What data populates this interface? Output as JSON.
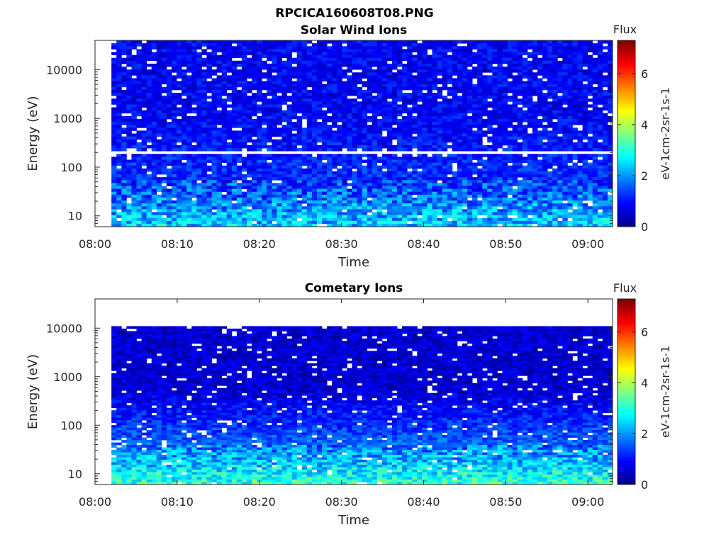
{
  "figure": {
    "title": "RPCICA160608T08.PNG"
  },
  "colors": {
    "colormap": [
      "#00008f",
      "#0000ff",
      "#0080ff",
      "#00ffff",
      "#80ff80",
      "#ffff00",
      "#ff8000",
      "#ff0000",
      "#800000"
    ],
    "axis": "#262626",
    "missing": "#ffffff"
  },
  "chart_data": [
    {
      "type": "heatmap",
      "title": "Solar Wind Ions",
      "xlabel": "Time",
      "ylabel": "Energy (eV)",
      "x_ticks": [
        "08:00",
        "08:10",
        "08:20",
        "08:30",
        "08:40",
        "08:50",
        "09:00"
      ],
      "x_range": [
        "08:00",
        "09:03"
      ],
      "data_x_range": [
        "08:02",
        "09:03"
      ],
      "y_scale": "log",
      "y_ticks": [
        "10",
        "100",
        "1000",
        "10000"
      ],
      "y_tick_values": [
        10,
        100,
        1000,
        10000
      ],
      "y_range": [
        6,
        40000
      ],
      "data_y_range": [
        6,
        40000
      ],
      "colorbar": {
        "title": "Flux",
        "label": "eV-1cm-2sr-1s-1",
        "ticks": [
          "0",
          "2",
          "4",
          "6"
        ],
        "range": [
          0,
          7.3
        ]
      },
      "flux_profile": {
        "low_energy": 2.3,
        "mid_energy": 1.2,
        "high_energy": 0.8
      },
      "gap_energy_eV": 200,
      "grid": false,
      "legend": "none"
    },
    {
      "type": "heatmap",
      "title": "Cometary Ions",
      "xlabel": "Time",
      "ylabel": "Energy (eV)",
      "x_ticks": [
        "08:00",
        "08:10",
        "08:20",
        "08:30",
        "08:40",
        "08:50",
        "09:00"
      ],
      "x_range": [
        "08:00",
        "09:03"
      ],
      "data_x_range": [
        "08:02",
        "09:03"
      ],
      "y_scale": "log",
      "y_ticks": [
        "10",
        "100",
        "1000",
        "10000"
      ],
      "y_tick_values": [
        10,
        100,
        1000,
        10000
      ],
      "y_range": [
        6,
        40000
      ],
      "data_y_range": [
        6,
        11000
      ],
      "colorbar": {
        "title": "Flux",
        "label": "eV-1cm-2sr-1s-1",
        "ticks": [
          "0",
          "2",
          "4",
          "6"
        ],
        "range": [
          0,
          7.3
        ]
      },
      "flux_profile": {
        "low_energy": 3.0,
        "mid_energy": 1.6,
        "high_energy": 0.5
      },
      "grid": false,
      "legend": "none"
    }
  ]
}
